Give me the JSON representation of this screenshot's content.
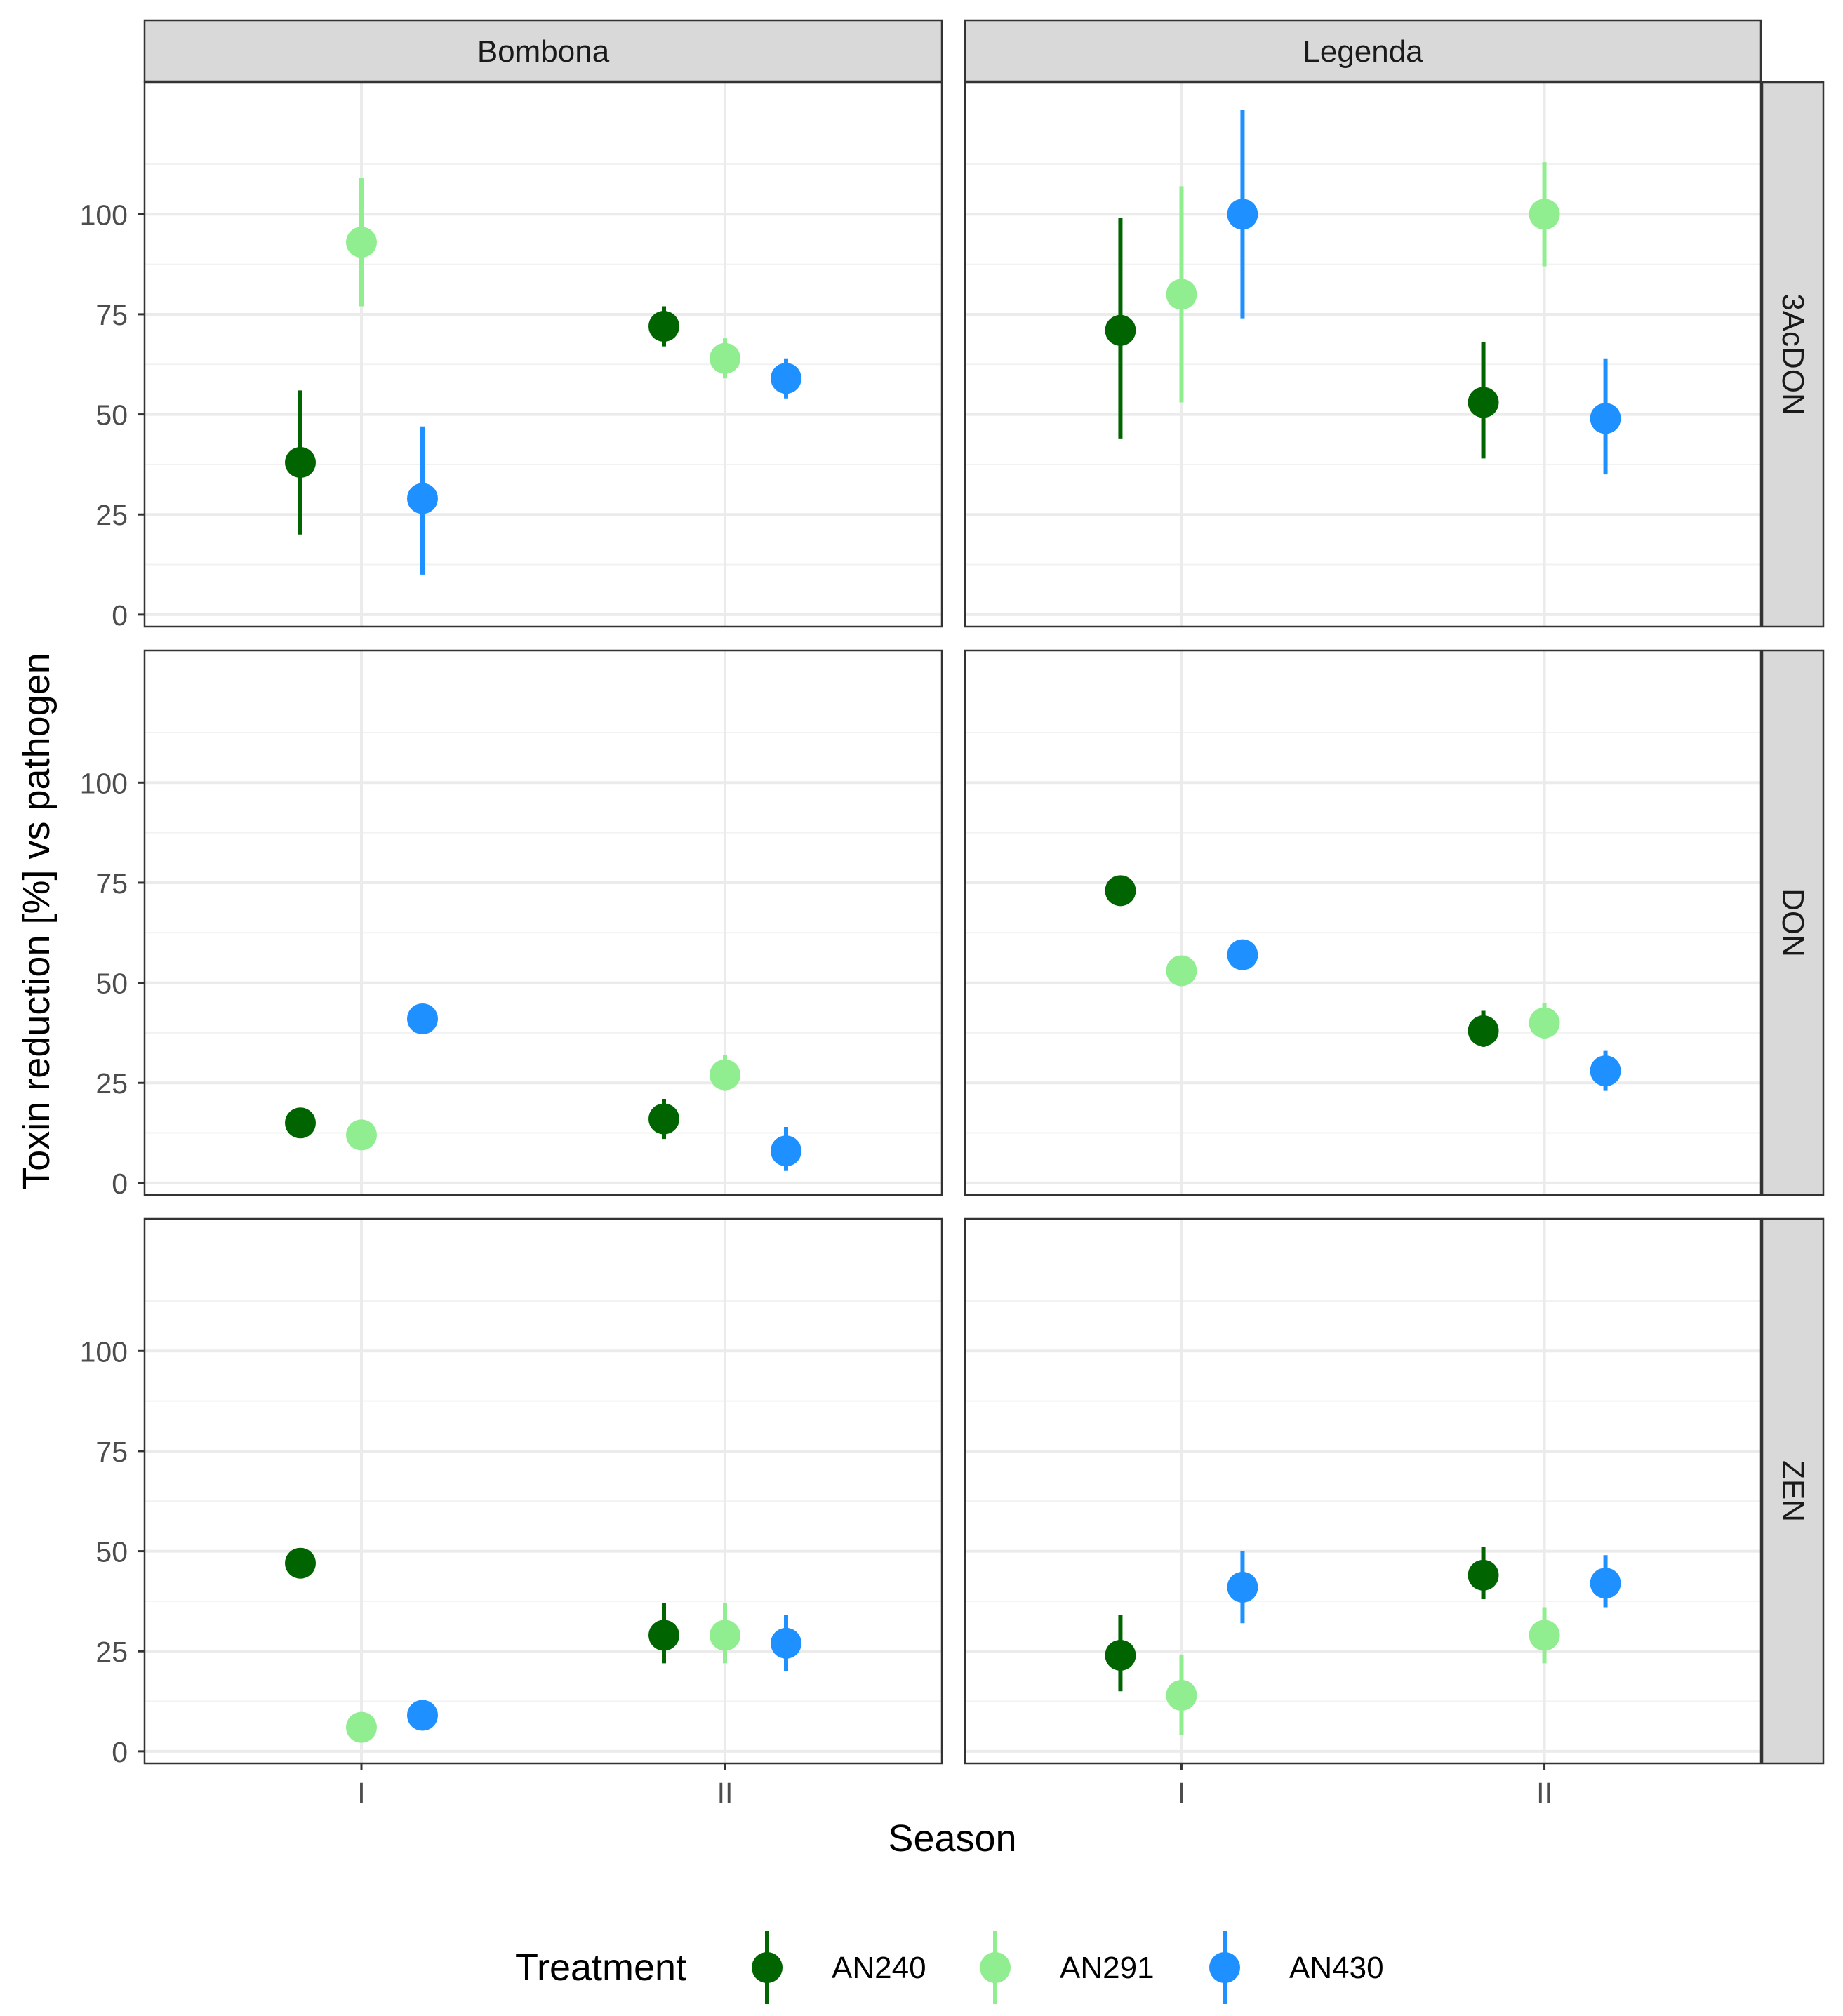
{
  "chart_data": {
    "type": "scatter",
    "subtype": "point-range faceted",
    "xlabel": "Season",
    "ylabel": "Toxin reduction [%] vs pathogen",
    "x_categories": [
      "I",
      "II"
    ],
    "y_ticks": [
      0,
      25,
      50,
      75,
      100
    ],
    "ylim": [
      -3,
      133
    ],
    "columns": [
      "Bombona",
      "Legenda"
    ],
    "rows": [
      "3AcDON",
      "DON",
      "ZEN"
    ],
    "legend": {
      "title": "Treatment",
      "position": "bottom",
      "entries": [
        {
          "name": "AN240",
          "color": "#006400"
        },
        {
          "name": "AN291",
          "color": "#90EE90"
        },
        {
          "name": "AN430",
          "color": "#1E90FF"
        }
      ]
    },
    "series": [
      {
        "toxin": "3AcDON",
        "cultivar": "Bombona",
        "season": "I",
        "treatment": "AN240",
        "value": 38,
        "low": 20,
        "high": 56
      },
      {
        "toxin": "3AcDON",
        "cultivar": "Bombona",
        "season": "I",
        "treatment": "AN291",
        "value": 93,
        "low": 77,
        "high": 109
      },
      {
        "toxin": "3AcDON",
        "cultivar": "Bombona",
        "season": "I",
        "treatment": "AN430",
        "value": 29,
        "low": 10,
        "high": 47
      },
      {
        "toxin": "3AcDON",
        "cultivar": "Bombona",
        "season": "II",
        "treatment": "AN240",
        "value": 72,
        "low": 67,
        "high": 77
      },
      {
        "toxin": "3AcDON",
        "cultivar": "Bombona",
        "season": "II",
        "treatment": "AN291",
        "value": 64,
        "low": 59,
        "high": 69
      },
      {
        "toxin": "3AcDON",
        "cultivar": "Bombona",
        "season": "II",
        "treatment": "AN430",
        "value": 59,
        "low": 54,
        "high": 64
      },
      {
        "toxin": "3AcDON",
        "cultivar": "Legenda",
        "season": "I",
        "treatment": "AN240",
        "value": 71,
        "low": 44,
        "high": 99
      },
      {
        "toxin": "3AcDON",
        "cultivar": "Legenda",
        "season": "I",
        "treatment": "AN291",
        "value": 80,
        "low": 53,
        "high": 107
      },
      {
        "toxin": "3AcDON",
        "cultivar": "Legenda",
        "season": "I",
        "treatment": "AN430",
        "value": 100,
        "low": 74,
        "high": 126
      },
      {
        "toxin": "3AcDON",
        "cultivar": "Legenda",
        "season": "II",
        "treatment": "AN240",
        "value": 53,
        "low": 39,
        "high": 68
      },
      {
        "toxin": "3AcDON",
        "cultivar": "Legenda",
        "season": "II",
        "treatment": "AN291",
        "value": 100,
        "low": 87,
        "high": 113
      },
      {
        "toxin": "3AcDON",
        "cultivar": "Legenda",
        "season": "II",
        "treatment": "AN430",
        "value": 49,
        "low": 35,
        "high": 64
      },
      {
        "toxin": "DON",
        "cultivar": "Bombona",
        "season": "I",
        "treatment": "AN240",
        "value": 15,
        "low": 13,
        "high": 17
      },
      {
        "toxin": "DON",
        "cultivar": "Bombona",
        "season": "I",
        "treatment": "AN291",
        "value": 12,
        "low": 10,
        "high": 14
      },
      {
        "toxin": "DON",
        "cultivar": "Bombona",
        "season": "I",
        "treatment": "AN430",
        "value": 41,
        "low": 39,
        "high": 43
      },
      {
        "toxin": "DON",
        "cultivar": "Bombona",
        "season": "II",
        "treatment": "AN240",
        "value": 16,
        "low": 11,
        "high": 21
      },
      {
        "toxin": "DON",
        "cultivar": "Bombona",
        "season": "II",
        "treatment": "AN291",
        "value": 27,
        "low": 23,
        "high": 32
      },
      {
        "toxin": "DON",
        "cultivar": "Bombona",
        "season": "II",
        "treatment": "AN430",
        "value": 8,
        "low": 3,
        "high": 14
      },
      {
        "toxin": "DON",
        "cultivar": "Legenda",
        "season": "I",
        "treatment": "AN240",
        "value": 73,
        "low": 71,
        "high": 75
      },
      {
        "toxin": "DON",
        "cultivar": "Legenda",
        "season": "I",
        "treatment": "AN291",
        "value": 53,
        "low": 51,
        "high": 55
      },
      {
        "toxin": "DON",
        "cultivar": "Legenda",
        "season": "I",
        "treatment": "AN430",
        "value": 57,
        "low": 54,
        "high": 60
      },
      {
        "toxin": "DON",
        "cultivar": "Legenda",
        "season": "II",
        "treatment": "AN240",
        "value": 38,
        "low": 34,
        "high": 43
      },
      {
        "toxin": "DON",
        "cultivar": "Legenda",
        "season": "II",
        "treatment": "AN291",
        "value": 40,
        "low": 36,
        "high": 45
      },
      {
        "toxin": "DON",
        "cultivar": "Legenda",
        "season": "II",
        "treatment": "AN430",
        "value": 28,
        "low": 23,
        "high": 33
      },
      {
        "toxin": "ZEN",
        "cultivar": "Bombona",
        "season": "I",
        "treatment": "AN240",
        "value": 47,
        "low": 45,
        "high": 49
      },
      {
        "toxin": "ZEN",
        "cultivar": "Bombona",
        "season": "I",
        "treatment": "AN291",
        "value": 6,
        "low": 4,
        "high": 8
      },
      {
        "toxin": "ZEN",
        "cultivar": "Bombona",
        "season": "I",
        "treatment": "AN430",
        "value": 9,
        "low": 7,
        "high": 11
      },
      {
        "toxin": "ZEN",
        "cultivar": "Bombona",
        "season": "II",
        "treatment": "AN240",
        "value": 29,
        "low": 22,
        "high": 37
      },
      {
        "toxin": "ZEN",
        "cultivar": "Bombona",
        "season": "II",
        "treatment": "AN291",
        "value": 29,
        "low": 22,
        "high": 37
      },
      {
        "toxin": "ZEN",
        "cultivar": "Bombona",
        "season": "II",
        "treatment": "AN430",
        "value": 27,
        "low": 20,
        "high": 34
      },
      {
        "toxin": "ZEN",
        "cultivar": "Legenda",
        "season": "I",
        "treatment": "AN240",
        "value": 24,
        "low": 15,
        "high": 34
      },
      {
        "toxin": "ZEN",
        "cultivar": "Legenda",
        "season": "I",
        "treatment": "AN291",
        "value": 14,
        "low": 4,
        "high": 24
      },
      {
        "toxin": "ZEN",
        "cultivar": "Legenda",
        "season": "I",
        "treatment": "AN430",
        "value": 41,
        "low": 32,
        "high": 50
      },
      {
        "toxin": "ZEN",
        "cultivar": "Legenda",
        "season": "II",
        "treatment": "AN240",
        "value": 44,
        "low": 38,
        "high": 51
      },
      {
        "toxin": "ZEN",
        "cultivar": "Legenda",
        "season": "II",
        "treatment": "AN291",
        "value": 29,
        "low": 22,
        "high": 36
      },
      {
        "toxin": "ZEN",
        "cultivar": "Legenda",
        "season": "II",
        "treatment": "AN430",
        "value": 42,
        "low": 36,
        "high": 49
      }
    ]
  }
}
